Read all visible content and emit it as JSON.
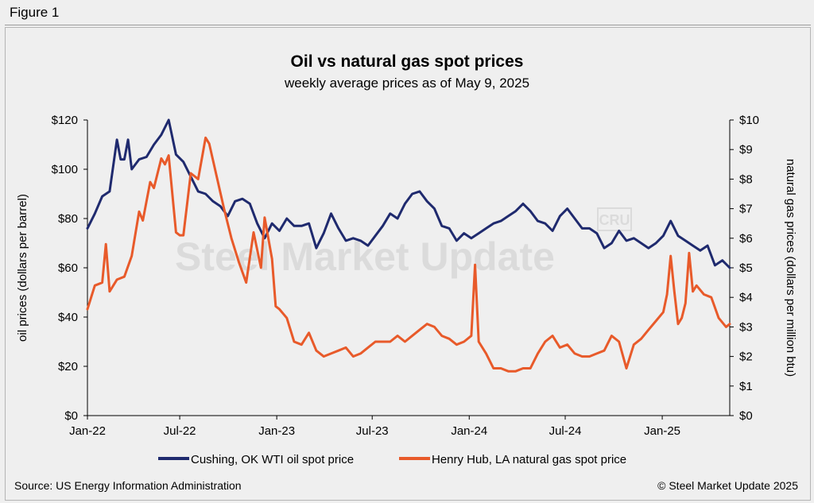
{
  "figure_label": "Figure 1",
  "source": "Source: US Energy Information Administration",
  "copyright": "© Steel Market Update 2025",
  "watermark": "Steel Market Update",
  "watermark_badge": "CRU",
  "colors": {
    "oil": "#1f2a6e",
    "gas": "#e85a2a",
    "background": "#efefef"
  },
  "chart_data": {
    "type": "line",
    "title": "Oil vs natural gas spot prices",
    "subtitle": "weekly average prices as of May 9, 2025",
    "ylabel_left": "oil prices (dollars per barrel)",
    "ylabel_right": "natural gas prices (dollars per million btu)",
    "ylim_left": [
      0,
      120
    ],
    "ylim_right": [
      0,
      10
    ],
    "yticks_left": [
      "$0",
      "$20",
      "$40",
      "$60",
      "$80",
      "$100",
      "$120"
    ],
    "yticks_right": [
      "$0",
      "$1",
      "$2",
      "$3",
      "$4",
      "$5",
      "$6",
      "$7",
      "$8",
      "$9",
      "$10"
    ],
    "xlim": [
      "2022-01-07",
      "2025-05-09"
    ],
    "xticks": [
      {
        "label": "Jan-22",
        "date": "2022-01-01"
      },
      {
        "label": "Jul-22",
        "date": "2022-07-01"
      },
      {
        "label": "Jan-23",
        "date": "2023-01-01"
      },
      {
        "label": "Jul-23",
        "date": "2023-07-01"
      },
      {
        "label": "Jan-24",
        "date": "2024-01-01"
      },
      {
        "label": "Jul-24",
        "date": "2024-07-01"
      },
      {
        "label": "Jan-25",
        "date": "2025-01-01"
      }
    ],
    "legend_position": "bottom",
    "grid": false,
    "series": [
      {
        "name": "Cushing, OK WTI oil spot price",
        "axis": "left",
        "points": [
          [
            "2022-01-07",
            76
          ],
          [
            "2022-01-21",
            82
          ],
          [
            "2022-02-04",
            89
          ],
          [
            "2022-02-18",
            91
          ],
          [
            "2022-03-04",
            112
          ],
          [
            "2022-03-11",
            104
          ],
          [
            "2022-03-18",
            104
          ],
          [
            "2022-03-25",
            112
          ],
          [
            "2022-04-01",
            100
          ],
          [
            "2022-04-15",
            104
          ],
          [
            "2022-04-29",
            105
          ],
          [
            "2022-05-13",
            110
          ],
          [
            "2022-05-27",
            114
          ],
          [
            "2022-06-10",
            120
          ],
          [
            "2022-06-24",
            106
          ],
          [
            "2022-07-08",
            103
          ],
          [
            "2022-07-22",
            97
          ],
          [
            "2022-08-05",
            91
          ],
          [
            "2022-08-19",
            90
          ],
          [
            "2022-09-02",
            87
          ],
          [
            "2022-09-16",
            85
          ],
          [
            "2022-09-30",
            81
          ],
          [
            "2022-10-14",
            87
          ],
          [
            "2022-10-28",
            88
          ],
          [
            "2022-11-11",
            86
          ],
          [
            "2022-11-25",
            78
          ],
          [
            "2022-12-09",
            72
          ],
          [
            "2022-12-23",
            78
          ],
          [
            "2023-01-06",
            75
          ],
          [
            "2023-01-20",
            80
          ],
          [
            "2023-02-03",
            77
          ],
          [
            "2023-02-17",
            77
          ],
          [
            "2023-03-03",
            78
          ],
          [
            "2023-03-17",
            68
          ],
          [
            "2023-03-31",
            74
          ],
          [
            "2023-04-14",
            82
          ],
          [
            "2023-04-28",
            76
          ],
          [
            "2023-05-12",
            71
          ],
          [
            "2023-05-26",
            72
          ],
          [
            "2023-06-09",
            71
          ],
          [
            "2023-06-23",
            69
          ],
          [
            "2023-07-07",
            73
          ],
          [
            "2023-07-21",
            77
          ],
          [
            "2023-08-04",
            82
          ],
          [
            "2023-08-18",
            80
          ],
          [
            "2023-09-01",
            86
          ],
          [
            "2023-09-15",
            90
          ],
          [
            "2023-09-29",
            91
          ],
          [
            "2023-10-13",
            87
          ],
          [
            "2023-10-27",
            84
          ],
          [
            "2023-11-10",
            77
          ],
          [
            "2023-11-24",
            76
          ],
          [
            "2023-12-08",
            71
          ],
          [
            "2023-12-22",
            74
          ],
          [
            "2024-01-05",
            72
          ],
          [
            "2024-01-19",
            74
          ],
          [
            "2024-02-02",
            76
          ],
          [
            "2024-02-16",
            78
          ],
          [
            "2024-03-01",
            79
          ],
          [
            "2024-03-15",
            81
          ],
          [
            "2024-03-29",
            83
          ],
          [
            "2024-04-12",
            86
          ],
          [
            "2024-04-26",
            83
          ],
          [
            "2024-05-10",
            79
          ],
          [
            "2024-05-24",
            78
          ],
          [
            "2024-06-07",
            75
          ],
          [
            "2024-06-21",
            81
          ],
          [
            "2024-07-05",
            84
          ],
          [
            "2024-07-19",
            80
          ],
          [
            "2024-08-02",
            76
          ],
          [
            "2024-08-16",
            76
          ],
          [
            "2024-08-30",
            74
          ],
          [
            "2024-09-13",
            68
          ],
          [
            "2024-09-27",
            70
          ],
          [
            "2024-10-11",
            75
          ],
          [
            "2024-10-25",
            71
          ],
          [
            "2024-11-08",
            72
          ],
          [
            "2024-11-22",
            70
          ],
          [
            "2024-12-06",
            68
          ],
          [
            "2024-12-20",
            70
          ],
          [
            "2025-01-03",
            73
          ],
          [
            "2025-01-17",
            79
          ],
          [
            "2025-01-31",
            73
          ],
          [
            "2025-02-14",
            71
          ],
          [
            "2025-02-28",
            69
          ],
          [
            "2025-03-14",
            67
          ],
          [
            "2025-03-28",
            69
          ],
          [
            "2025-04-11",
            61
          ],
          [
            "2025-04-25",
            63
          ],
          [
            "2025-05-09",
            60
          ]
        ]
      },
      {
        "name": "Henry Hub, LA natural gas spot price",
        "axis": "right",
        "points": [
          [
            "2022-01-07",
            3.6
          ],
          [
            "2022-01-21",
            4.4
          ],
          [
            "2022-02-04",
            4.5
          ],
          [
            "2022-02-11",
            5.8
          ],
          [
            "2022-02-18",
            4.2
          ],
          [
            "2022-03-04",
            4.6
          ],
          [
            "2022-03-18",
            4.7
          ],
          [
            "2022-04-01",
            5.4
          ],
          [
            "2022-04-15",
            6.9
          ],
          [
            "2022-04-22",
            6.6
          ],
          [
            "2022-05-06",
            7.9
          ],
          [
            "2022-05-13",
            7.7
          ],
          [
            "2022-05-27",
            8.7
          ],
          [
            "2022-06-03",
            8.5
          ],
          [
            "2022-06-10",
            8.8
          ],
          [
            "2022-06-24",
            6.2
          ],
          [
            "2022-07-01",
            6.1
          ],
          [
            "2022-07-08",
            6.1
          ],
          [
            "2022-07-22",
            8.2
          ],
          [
            "2022-08-05",
            8.0
          ],
          [
            "2022-08-19",
            9.4
          ],
          [
            "2022-08-26",
            9.2
          ],
          [
            "2022-09-09",
            8.1
          ],
          [
            "2022-09-23",
            7.0
          ],
          [
            "2022-10-07",
            6.0
          ],
          [
            "2022-10-21",
            5.2
          ],
          [
            "2022-11-04",
            4.5
          ],
          [
            "2022-11-18",
            6.2
          ],
          [
            "2022-12-02",
            5.0
          ],
          [
            "2022-12-09",
            6.7
          ],
          [
            "2022-12-23",
            5.3
          ],
          [
            "2022-12-30",
            3.7
          ],
          [
            "2023-01-06",
            3.6
          ],
          [
            "2023-01-20",
            3.3
          ],
          [
            "2023-02-03",
            2.5
          ],
          [
            "2023-02-17",
            2.4
          ],
          [
            "2023-03-03",
            2.8
          ],
          [
            "2023-03-17",
            2.2
          ],
          [
            "2023-03-31",
            2.0
          ],
          [
            "2023-04-14",
            2.1
          ],
          [
            "2023-04-28",
            2.2
          ],
          [
            "2023-05-12",
            2.3
          ],
          [
            "2023-05-26",
            2.0
          ],
          [
            "2023-06-09",
            2.1
          ],
          [
            "2023-06-23",
            2.3
          ],
          [
            "2023-07-07",
            2.5
          ],
          [
            "2023-07-21",
            2.5
          ],
          [
            "2023-08-04",
            2.5
          ],
          [
            "2023-08-18",
            2.7
          ],
          [
            "2023-09-01",
            2.5
          ],
          [
            "2023-09-15",
            2.7
          ],
          [
            "2023-09-29",
            2.9
          ],
          [
            "2023-10-13",
            3.1
          ],
          [
            "2023-10-27",
            3.0
          ],
          [
            "2023-11-10",
            2.7
          ],
          [
            "2023-11-24",
            2.6
          ],
          [
            "2023-12-08",
            2.4
          ],
          [
            "2023-12-22",
            2.5
          ],
          [
            "2024-01-05",
            2.7
          ],
          [
            "2024-01-12",
            5.1
          ],
          [
            "2024-01-19",
            2.5
          ],
          [
            "2024-02-02",
            2.1
          ],
          [
            "2024-02-16",
            1.6
          ],
          [
            "2024-03-01",
            1.6
          ],
          [
            "2024-03-15",
            1.5
          ],
          [
            "2024-03-29",
            1.5
          ],
          [
            "2024-04-12",
            1.6
          ],
          [
            "2024-04-26",
            1.6
          ],
          [
            "2024-05-10",
            2.1
          ],
          [
            "2024-05-24",
            2.5
          ],
          [
            "2024-06-07",
            2.7
          ],
          [
            "2024-06-21",
            2.3
          ],
          [
            "2024-07-05",
            2.4
          ],
          [
            "2024-07-19",
            2.1
          ],
          [
            "2024-08-02",
            2.0
          ],
          [
            "2024-08-16",
            2.0
          ],
          [
            "2024-08-30",
            2.1
          ],
          [
            "2024-09-13",
            2.2
          ],
          [
            "2024-09-27",
            2.7
          ],
          [
            "2024-10-11",
            2.5
          ],
          [
            "2024-10-25",
            1.6
          ],
          [
            "2024-11-08",
            2.4
          ],
          [
            "2024-11-22",
            2.6
          ],
          [
            "2024-12-06",
            2.9
          ],
          [
            "2024-12-20",
            3.2
          ],
          [
            "2025-01-03",
            3.5
          ],
          [
            "2025-01-10",
            4.1
          ],
          [
            "2025-01-17",
            5.4
          ],
          [
            "2025-01-24",
            4.2
          ],
          [
            "2025-01-31",
            3.1
          ],
          [
            "2025-02-07",
            3.3
          ],
          [
            "2025-02-14",
            3.8
          ],
          [
            "2025-02-21",
            5.5
          ],
          [
            "2025-02-28",
            4.2
          ],
          [
            "2025-03-07",
            4.4
          ],
          [
            "2025-03-21",
            4.1
          ],
          [
            "2025-04-04",
            4.0
          ],
          [
            "2025-04-18",
            3.3
          ],
          [
            "2025-05-02",
            3.0
          ],
          [
            "2025-05-09",
            3.1
          ]
        ]
      }
    ]
  }
}
